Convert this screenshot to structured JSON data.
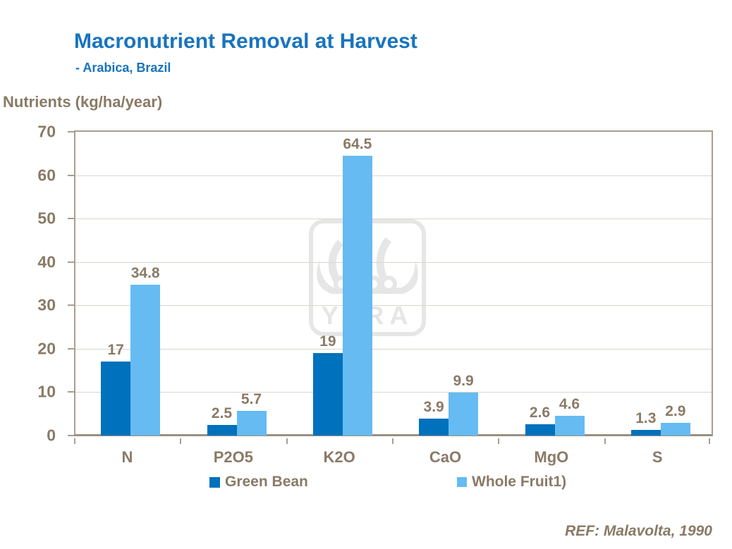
{
  "header": {
    "title": "Macronutrient Removal at Harvest",
    "subtitle": "- Arabica, Brazil"
  },
  "footer": {
    "reference": "REF: Malavolta, 1990"
  },
  "watermark": {
    "name": "yara-viking-ship-logo",
    "text": "YARA",
    "color": "#E6E6E6"
  },
  "colors": {
    "title_blue": "#1874BE",
    "axis_text_brown": "#8A7A66",
    "gridline": "#DCD5CC",
    "plot_border": "#A89E90",
    "green_bean_bar": "#0071BC",
    "whole_fruit_bar": "#66BBF3"
  },
  "chart_data": {
    "type": "bar",
    "title": "Macronutrient Removal at Harvest",
    "subtitle": "- Arabica, Brazil",
    "ylabel": "Nutrients (kg/ha/year)",
    "xlabel": "",
    "categories": [
      "N",
      "P2O5",
      "K2O",
      "CaO",
      "MgO",
      "S"
    ],
    "series": [
      {
        "name": "Green Bean",
        "color": "#0071BC",
        "values": [
          17,
          2.5,
          19,
          3.9,
          2.6,
          1.3
        ]
      },
      {
        "name": "Whole Fruit1)",
        "color": "#66BBF3",
        "values": [
          34.8,
          5.7,
          64.5,
          9.9,
          4.6,
          2.9
        ]
      }
    ],
    "ylim": [
      0,
      70
    ],
    "yticks": [
      0,
      10,
      20,
      30,
      40,
      50,
      60,
      70
    ],
    "grid": true,
    "legend_position": "bottom",
    "data_labels": true
  }
}
